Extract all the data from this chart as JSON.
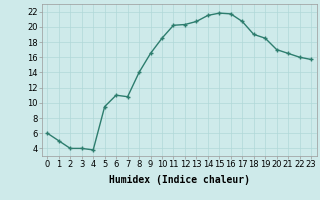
{
  "x": [
    0,
    1,
    2,
    3,
    4,
    5,
    6,
    7,
    8,
    9,
    10,
    11,
    12,
    13,
    14,
    15,
    16,
    17,
    18,
    19,
    20,
    21,
    22,
    23
  ],
  "y": [
    6,
    5,
    4,
    4,
    3.8,
    9.5,
    11,
    10.8,
    14,
    16.5,
    18.5,
    20.2,
    20.3,
    20.7,
    21.5,
    21.8,
    21.7,
    20.7,
    19,
    18.5,
    17,
    16.5,
    16,
    15.7
  ],
  "line_color": "#2d7d6e",
  "marker": "+",
  "bg_color": "#ceeaea",
  "grid_color": "#b0d8d8",
  "xlabel": "Humidex (Indice chaleur)",
  "xlim": [
    -0.5,
    23.5
  ],
  "ylim": [
    3,
    23
  ],
  "yticks": [
    4,
    6,
    8,
    10,
    12,
    14,
    16,
    18,
    20,
    22
  ],
  "xticks": [
    0,
    1,
    2,
    3,
    4,
    5,
    6,
    7,
    8,
    9,
    10,
    11,
    12,
    13,
    14,
    15,
    16,
    17,
    18,
    19,
    20,
    21,
    22,
    23
  ],
  "xlabel_fontsize": 7,
  "tick_fontsize": 6,
  "linewidth": 1.0,
  "markersize": 3,
  "markeredgewidth": 1.0
}
